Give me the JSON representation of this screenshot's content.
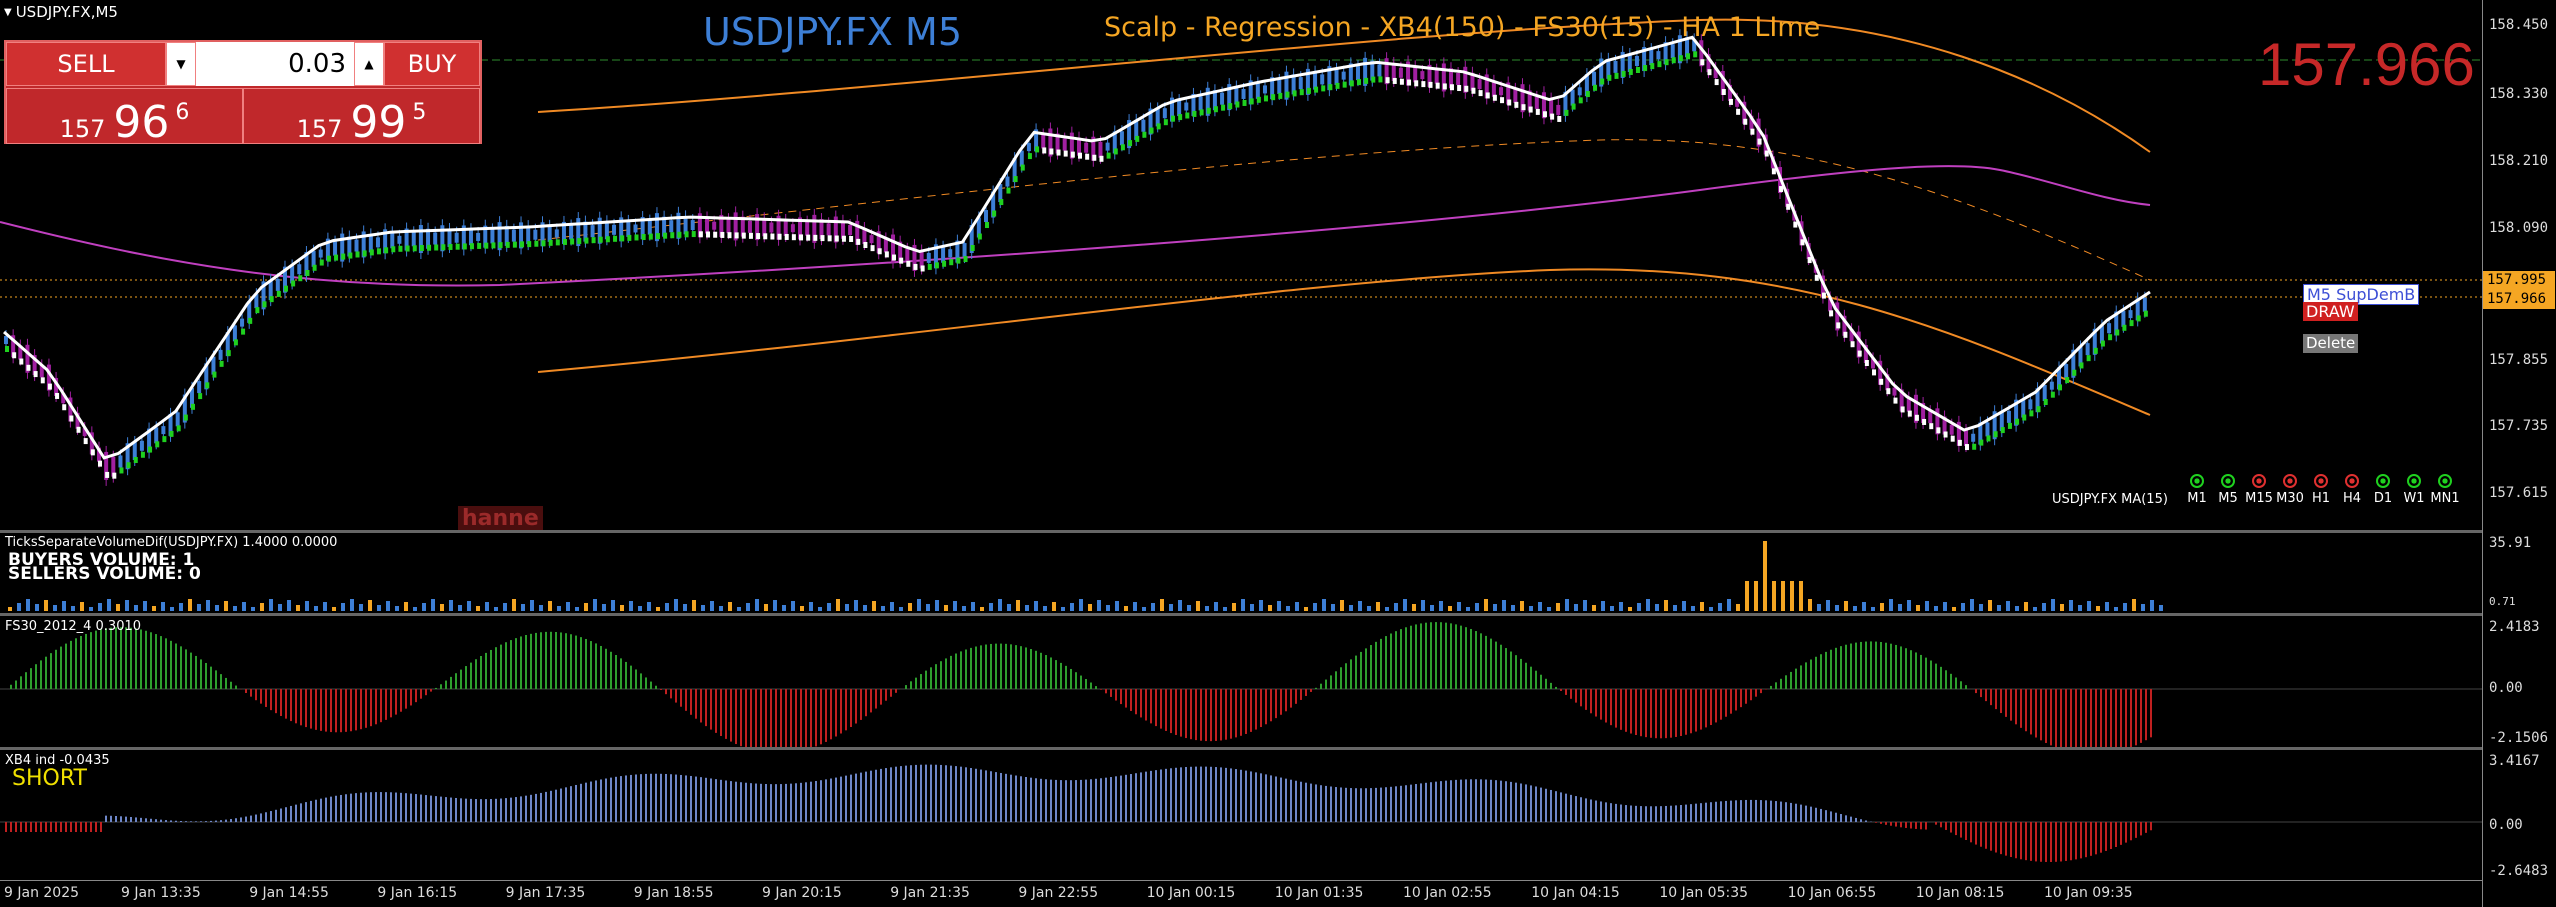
{
  "header": {
    "symbol": "USDJPY.FX,M5",
    "title": "USDJPY.FX M5",
    "subtitle": "Scalp - Regression - XB4(150) - FS30(15) - HA  1 LIme",
    "big_price": "157.966"
  },
  "trade_panel": {
    "sell_label": "SELL",
    "buy_label": "BUY",
    "lot_value": "0.03",
    "bid": {
      "big": "157",
      "pips": "96",
      "frac": "6"
    },
    "ask": {
      "big": "157",
      "pips": "99",
      "frac": "5"
    }
  },
  "main_pane": {
    "price_scale": [
      "158.450",
      "158.330",
      "158.210",
      "158.090",
      "157.855",
      "157.735",
      "157.615"
    ],
    "price_labels": [
      {
        "text": "157.995",
        "color": "#f5a623"
      },
      {
        "text": "157.966",
        "color": "#f5a623"
      }
    ],
    "ma_label": "USDJPY.FX MA(15)",
    "support_tag": "M5 SupDemB",
    "draw_button": "DRAW",
    "delete_button": "Delete",
    "watermark": "hanne",
    "timeframes": [
      {
        "label": "M1",
        "state": "up"
      },
      {
        "label": "M5",
        "state": "up"
      },
      {
        "label": "M15",
        "state": "down"
      },
      {
        "label": "M30",
        "state": "down"
      },
      {
        "label": "H1",
        "state": "down"
      },
      {
        "label": "H4",
        "state": "down"
      },
      {
        "label": "D1",
        "state": "up"
      },
      {
        "label": "W1",
        "state": "up"
      },
      {
        "label": "MN1",
        "state": "up"
      }
    ]
  },
  "volume_pane": {
    "title": "TicksSeparateVolumeDif(USDJPY.FX) 1.4000 0.0000",
    "buyers": "BUYERS VOLUME: 1",
    "sellers": "SELLERS VOLUME: 0",
    "scale": [
      "35.91",
      "0.71"
    ]
  },
  "fs_pane": {
    "title": "FS30_2012_4 0.3010",
    "scale": [
      "2.4183",
      "0.00",
      "-2.1506"
    ]
  },
  "xb_pane": {
    "title": "XB4 ind -0.0435",
    "signal": "SHORT",
    "scale": [
      "3.4167",
      "0.00",
      "-2.6483"
    ]
  },
  "time_axis": [
    "9 Jan 2025",
    "9 Jan 13:35",
    "9 Jan 14:55",
    "9 Jan 16:15",
    "9 Jan 17:35",
    "9 Jan 18:55",
    "9 Jan 20:15",
    "9 Jan 21:35",
    "9 Jan 22:55",
    "10 Jan 00:15",
    "10 Jan 01:35",
    "10 Jan 02:55",
    "10 Jan 04:15",
    "10 Jan 05:35",
    "10 Jan 06:55",
    "10 Jan 08:15",
    "10 Jan 09:35"
  ],
  "colors": {
    "accent_title": "#3d7fd6",
    "subtitle": "#f5a623",
    "bull": "#3d7fd6",
    "bear": "#a020a0",
    "ha_up": "#1fd11f",
    "ha_down": "#ffffff",
    "band": "#f08a24",
    "ma": "#c040c0",
    "osc_pos": "#2e9e2e",
    "osc_neg": "#c02020",
    "xb_pos": "#6d86c8"
  }
}
